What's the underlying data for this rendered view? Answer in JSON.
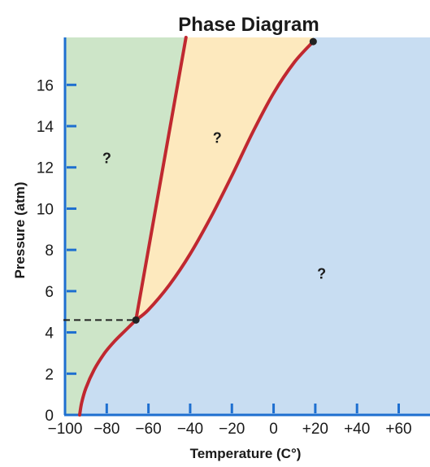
{
  "chart_data": {
    "type": "phase-diagram",
    "title": "Phase Diagram",
    "xlabel": "Temperature (C°)",
    "ylabel": "Pressure (atm)",
    "xlim": [
      -100,
      75
    ],
    "ylim": [
      0,
      18.3
    ],
    "x_ticks": [
      {
        "value": -100,
        "label": "−100"
      },
      {
        "value": -80,
        "label": "−80"
      },
      {
        "value": -60,
        "label": "−60"
      },
      {
        "value": -40,
        "label": "−40"
      },
      {
        "value": -20,
        "label": "−20"
      },
      {
        "value": 0,
        "label": "0"
      },
      {
        "value": 20,
        "label": "+20"
      },
      {
        "value": 40,
        "label": "+40"
      },
      {
        "value": 60,
        "label": "+60"
      }
    ],
    "y_ticks": [
      {
        "value": 0,
        "label": "0"
      },
      {
        "value": 2,
        "label": "2"
      },
      {
        "value": 4,
        "label": "4"
      },
      {
        "value": 6,
        "label": "6"
      },
      {
        "value": 8,
        "label": "8"
      },
      {
        "value": 10,
        "label": "10"
      },
      {
        "value": 12,
        "label": "12"
      },
      {
        "value": 14,
        "label": "14"
      },
      {
        "value": 16,
        "label": "16"
      }
    ],
    "curves": {
      "sublimation": [
        [
          -93,
          0
        ],
        [
          -92,
          0.6
        ],
        [
          -90,
          1.3
        ],
        [
          -86,
          2.2
        ],
        [
          -81,
          3.0
        ],
        [
          -76,
          3.6
        ],
        [
          -71,
          4.1
        ],
        [
          -66,
          4.6
        ]
      ],
      "melting": [
        [
          -66,
          4.6
        ],
        [
          -42,
          18.3
        ]
      ],
      "vaporization": [
        [
          -66,
          4.6
        ],
        [
          -60,
          5.1
        ],
        [
          -50,
          6.3
        ],
        [
          -40,
          7.8
        ],
        [
          -30,
          9.6
        ],
        [
          -20,
          11.6
        ],
        [
          -10,
          13.7
        ],
        [
          0,
          15.6
        ],
        [
          10,
          17.1
        ],
        [
          19,
          18.1
        ]
      ]
    },
    "triple_point": {
      "x": -66,
      "y": 4.6
    },
    "critical_point": {
      "x": 19,
      "y": 18.1
    },
    "region_labels": [
      {
        "text": "?",
        "x": -80,
        "y": 12.2
      },
      {
        "text": "?",
        "x": -27,
        "y": 13.2
      },
      {
        "text": "?",
        "x": 23,
        "y": 6.6
      }
    ],
    "colors": {
      "solid_region": "#cde5c8",
      "liquid_region": "#fde9be",
      "gas_region": "#c8ddf2",
      "curve": "#c02830",
      "axis": "#1e6fd0",
      "text": "#1a1a1a"
    }
  }
}
